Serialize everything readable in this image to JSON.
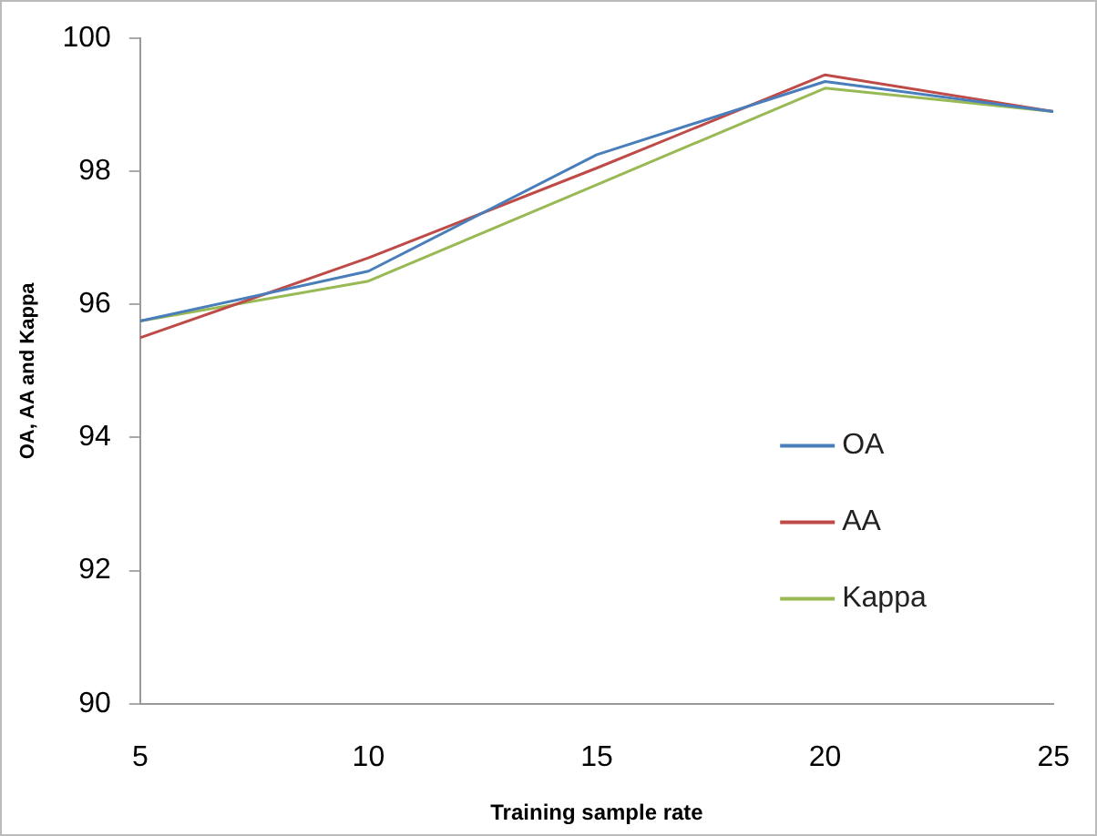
{
  "chart_data": {
    "type": "line",
    "xlabel": "Training sample rate",
    "ylabel": "OA, AA and Kappa",
    "x": [
      5,
      10,
      15,
      20,
      25
    ],
    "series": [
      {
        "name": "OA",
        "color": "#4a7ebb",
        "values": [
          95.75,
          96.5,
          98.25,
          99.35,
          98.9
        ]
      },
      {
        "name": "AA",
        "color": "#be4b48",
        "values": [
          95.5,
          96.7,
          98.05,
          99.45,
          98.9
        ]
      },
      {
        "name": "Kappa",
        "color": "#98b954",
        "values": [
          95.75,
          96.35,
          97.8,
          99.25,
          98.9
        ]
      }
    ],
    "xlim": [
      5,
      25
    ],
    "xticks": [
      5,
      10,
      15,
      20,
      25
    ],
    "ylim": [
      90,
      100
    ],
    "yticks": [
      90,
      92,
      94,
      96,
      98,
      100
    ],
    "grid": false,
    "legend": "center right",
    "marker": "none",
    "line_style": "solid"
  }
}
